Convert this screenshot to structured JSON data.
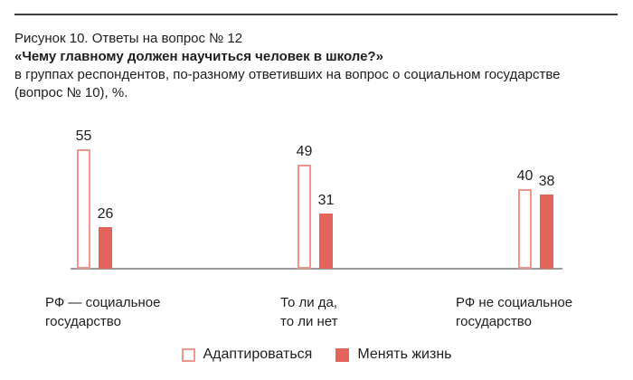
{
  "header": {
    "line1": "Рисунок 10. Ответы на вопрос № 12",
    "line2": "«Чему главному должен научиться человек в школе?»",
    "line3": "в группах респондентов, по-разному ответивших на вопрос о социальном государстве",
    "line4": "(вопрос № 10), %."
  },
  "colors": {
    "solid_bar": "#E2645A",
    "outlined_bar_border": "#F0958A",
    "axis_line": "#9B9B9B",
    "top_rule": "#3F3F3F",
    "text": "#1E1E1E"
  },
  "chart_data": {
    "type": "bar",
    "title": "Рисунок 10. Ответы на вопрос № 12 «Чему главному должен научиться человек в школе?»",
    "subtitle": "в группах респондентов, по-разному ответивших на вопрос о социальном государстве (вопрос № 10), %.",
    "unit": "%",
    "categories": [
      "РФ — социальное государство",
      "То ли да, то ли нет",
      "РФ не социальное государство"
    ],
    "category_lines": [
      [
        "РФ — социальное",
        "государство"
      ],
      [
        "То ли да,",
        "то ли нет"
      ],
      [
        "РФ не социальное",
        "государство"
      ]
    ],
    "series": [
      {
        "name": "Адаптироваться",
        "style": "outlined",
        "values": [
          55,
          49,
          40
        ]
      },
      {
        "name": "Менять жизнь",
        "style": "solid",
        "values": [
          26,
          31,
          38
        ]
      }
    ],
    "value_labels": true,
    "grid": false,
    "legend_position": "bottom"
  }
}
